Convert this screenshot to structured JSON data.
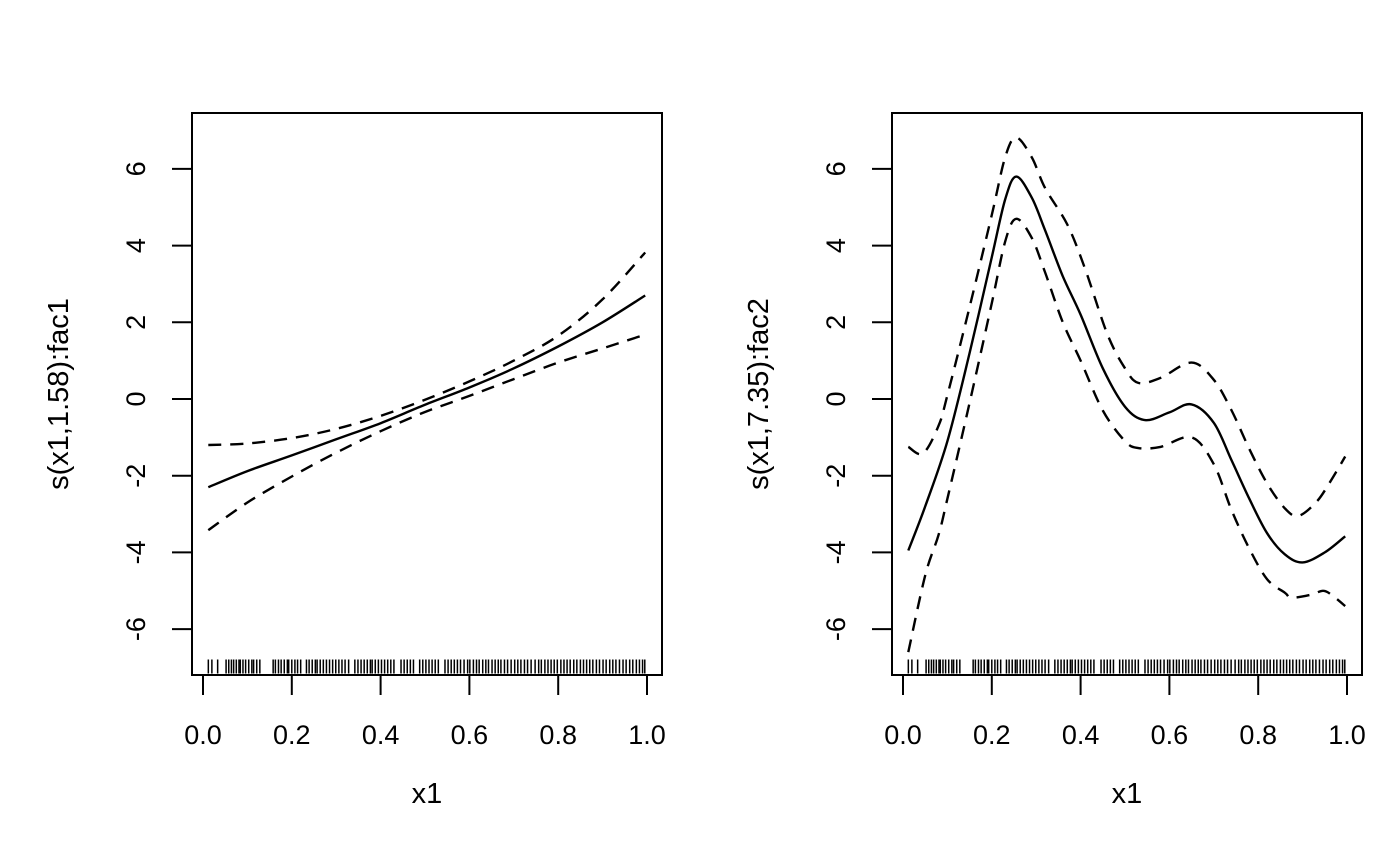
{
  "figure": {
    "background": "#ffffff",
    "line_color": "#000000",
    "description": "Two GAM smooth term plots (mgcv plot.gam style) with solid fit line, dashed 95% confidence bands and data rug"
  },
  "chart_data": [
    {
      "type": "line",
      "panel": "left",
      "title": "",
      "xlabel": "x1",
      "ylabel": "s(x1,1.58):fac1",
      "x_ticks": [
        0.0,
        0.2,
        0.4,
        0.6,
        0.8,
        1.0
      ],
      "x_tick_labels": [
        "0.0",
        "0.2",
        "0.4",
        "0.6",
        "0.8",
        "1.0"
      ],
      "y_ticks": [
        -6,
        -4,
        -2,
        0,
        2,
        4,
        6
      ],
      "y_tick_labels": [
        "-6",
        "-4",
        "-2",
        "0",
        "2",
        "4",
        "6"
      ],
      "xlim": [
        -0.025,
        1.034
      ],
      "ylim": [
        -7.2,
        7.46
      ],
      "grid": false,
      "legend": null,
      "series": [
        {
          "name": "fit",
          "style": "solid",
          "points": [
            [
              0.012,
              -2.3
            ],
            [
              0.1,
              -1.88
            ],
            [
              0.2,
              -1.47
            ],
            [
              0.3,
              -1.05
            ],
            [
              0.4,
              -0.63
            ],
            [
              0.5,
              -0.15
            ],
            [
              0.6,
              0.3
            ],
            [
              0.7,
              0.8
            ],
            [
              0.8,
              1.37
            ],
            [
              0.9,
              2.0
            ],
            [
              0.996,
              2.7
            ]
          ]
        },
        {
          "name": "upper-95ci",
          "style": "dashed",
          "points": [
            [
              0.012,
              -1.2
            ],
            [
              0.1,
              -1.16
            ],
            [
              0.2,
              -1.02
            ],
            [
              0.3,
              -0.78
            ],
            [
              0.4,
              -0.44
            ],
            [
              0.5,
              -0.02
            ],
            [
              0.6,
              0.46
            ],
            [
              0.7,
              1.0
            ],
            [
              0.8,
              1.65
            ],
            [
              0.9,
              2.6
            ],
            [
              0.996,
              3.82
            ]
          ]
        },
        {
          "name": "lower-95ci",
          "style": "dashed",
          "points": [
            [
              0.012,
              -3.42
            ],
            [
              0.1,
              -2.7
            ],
            [
              0.2,
              -2.02
            ],
            [
              0.3,
              -1.4
            ],
            [
              0.4,
              -0.84
            ],
            [
              0.5,
              -0.34
            ],
            [
              0.6,
              0.08
            ],
            [
              0.7,
              0.52
            ],
            [
              0.8,
              0.95
            ],
            [
              0.9,
              1.32
            ],
            [
              0.996,
              1.68
            ]
          ]
        }
      ]
    },
    {
      "type": "line",
      "panel": "right",
      "title": "",
      "xlabel": "x1",
      "ylabel": "s(x1,7.35):fac2",
      "x_ticks": [
        0.0,
        0.2,
        0.4,
        0.6,
        0.8,
        1.0
      ],
      "x_tick_labels": [
        "0.0",
        "0.2",
        "0.4",
        "0.6",
        "0.8",
        "1.0"
      ],
      "y_ticks": [
        -6,
        -4,
        -2,
        0,
        2,
        4,
        6
      ],
      "y_tick_labels": [
        "-6",
        "-4",
        "-2",
        "0",
        "2",
        "4",
        "6"
      ],
      "xlim": [
        -0.025,
        1.034
      ],
      "ylim": [
        -7.2,
        7.46
      ],
      "grid": false,
      "legend": null,
      "series": [
        {
          "name": "fit",
          "style": "solid",
          "points": [
            [
              0.012,
              -3.95
            ],
            [
              0.05,
              -2.8
            ],
            [
              0.1,
              -1.1
            ],
            [
              0.15,
              1.2
            ],
            [
              0.2,
              3.7
            ],
            [
              0.23,
              5.2
            ],
            [
              0.255,
              5.8
            ],
            [
              0.29,
              5.25
            ],
            [
              0.32,
              4.4
            ],
            [
              0.36,
              3.2
            ],
            [
              0.4,
              2.2
            ],
            [
              0.45,
              0.8
            ],
            [
              0.5,
              -0.2
            ],
            [
              0.545,
              -0.55
            ],
            [
              0.6,
              -0.35
            ],
            [
              0.65,
              -0.14
            ],
            [
              0.7,
              -0.62
            ],
            [
              0.74,
              -1.6
            ],
            [
              0.78,
              -2.6
            ],
            [
              0.82,
              -3.5
            ],
            [
              0.86,
              -4.05
            ],
            [
              0.9,
              -4.26
            ],
            [
              0.95,
              -4.0
            ],
            [
              0.996,
              -3.58
            ]
          ]
        },
        {
          "name": "upper-95ci",
          "style": "dashed",
          "points": [
            [
              0.012,
              -1.25
            ],
            [
              0.045,
              -1.42
            ],
            [
              0.08,
              -0.7
            ],
            [
              0.1,
              0.1
            ],
            [
              0.15,
              2.4
            ],
            [
              0.2,
              4.8
            ],
            [
              0.23,
              6.3
            ],
            [
              0.255,
              6.82
            ],
            [
              0.29,
              6.3
            ],
            [
              0.32,
              5.5
            ],
            [
              0.37,
              4.55
            ],
            [
              0.41,
              3.4
            ],
            [
              0.46,
              1.7
            ],
            [
              0.5,
              0.8
            ],
            [
              0.53,
              0.42
            ],
            [
              0.58,
              0.55
            ],
            [
              0.65,
              0.95
            ],
            [
              0.7,
              0.5
            ],
            [
              0.74,
              -0.3
            ],
            [
              0.78,
              -1.3
            ],
            [
              0.82,
              -2.2
            ],
            [
              0.86,
              -2.85
            ],
            [
              0.89,
              -3.05
            ],
            [
              0.93,
              -2.7
            ],
            [
              0.96,
              -2.2
            ],
            [
              0.996,
              -1.5
            ]
          ]
        },
        {
          "name": "lower-95ci",
          "style": "dashed",
          "points": [
            [
              0.012,
              -6.6
            ],
            [
              0.05,
              -4.6
            ],
            [
              0.08,
              -3.55
            ],
            [
              0.1,
              -2.6
            ],
            [
              0.15,
              -0.1
            ],
            [
              0.2,
              2.5
            ],
            [
              0.23,
              4.1
            ],
            [
              0.255,
              4.7
            ],
            [
              0.29,
              4.2
            ],
            [
              0.32,
              3.3
            ],
            [
              0.36,
              2.0
            ],
            [
              0.4,
              1.0
            ],
            [
              0.45,
              -0.3
            ],
            [
              0.5,
              -1.1
            ],
            [
              0.53,
              -1.28
            ],
            [
              0.58,
              -1.25
            ],
            [
              0.65,
              -1.0
            ],
            [
              0.7,
              -1.7
            ],
            [
              0.74,
              -2.9
            ],
            [
              0.78,
              -3.9
            ],
            [
              0.82,
              -4.7
            ],
            [
              0.86,
              -5.05
            ],
            [
              0.875,
              -5.18
            ],
            [
              0.92,
              -5.1
            ],
            [
              0.947,
              -5.0
            ],
            [
              0.97,
              -5.15
            ],
            [
              0.996,
              -5.4
            ]
          ]
        }
      ]
    }
  ],
  "rug_x": [
    0.012,
    0.02,
    0.033,
    0.052,
    0.058,
    0.064,
    0.069,
    0.075,
    0.081,
    0.084,
    0.09,
    0.096,
    0.103,
    0.11,
    0.114,
    0.121,
    0.128,
    0.158,
    0.163,
    0.17,
    0.176,
    0.183,
    0.19,
    0.193,
    0.2,
    0.207,
    0.213,
    0.22,
    0.233,
    0.239,
    0.246,
    0.253,
    0.257,
    0.264,
    0.271,
    0.278,
    0.285,
    0.292,
    0.299,
    0.306,
    0.313,
    0.32,
    0.328,
    0.342,
    0.349,
    0.356,
    0.363,
    0.37,
    0.377,
    0.381,
    0.388,
    0.395,
    0.402,
    0.409,
    0.416,
    0.423,
    0.43,
    0.446,
    0.453,
    0.46,
    0.467,
    0.474,
    0.488,
    0.495,
    0.502,
    0.509,
    0.516,
    0.523,
    0.53,
    0.545,
    0.552,
    0.559,
    0.566,
    0.573,
    0.58,
    0.588,
    0.596,
    0.601,
    0.609,
    0.616,
    0.622,
    0.63,
    0.637,
    0.643,
    0.651,
    0.658,
    0.665,
    0.671,
    0.679,
    0.686,
    0.694,
    0.702,
    0.709,
    0.716,
    0.724,
    0.731,
    0.739,
    0.748,
    0.756,
    0.762,
    0.77,
    0.777,
    0.784,
    0.791,
    0.798,
    0.806,
    0.813,
    0.82,
    0.827,
    0.835,
    0.842,
    0.85,
    0.857,
    0.864,
    0.871,
    0.878,
    0.886,
    0.893,
    0.901,
    0.908,
    0.916,
    0.923,
    0.93,
    0.938,
    0.946,
    0.953,
    0.961,
    0.968,
    0.976,
    0.983,
    0.99,
    0.995
  ]
}
